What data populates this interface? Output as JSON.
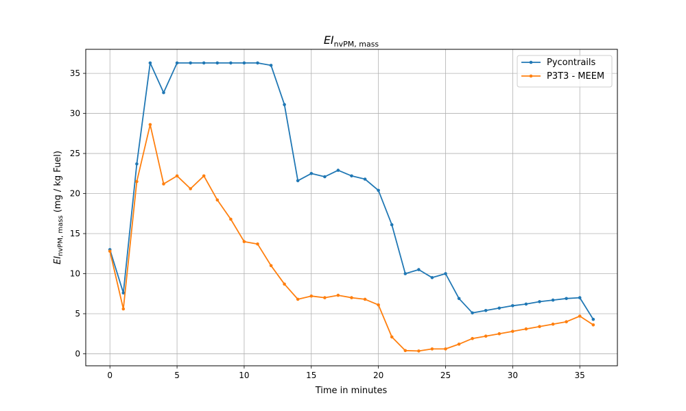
{
  "chart_data": {
    "type": "line",
    "title_main": "EI",
    "title_sub": "nvPM, mass",
    "xlabel": "Time in minutes",
    "ylabel_main": "EI",
    "ylabel_sub": "nvPM, mass",
    "ylabel_units": " (mg / kg Fuel)",
    "xlim": [
      -1.8,
      37.8
    ],
    "ylim": [
      -1.5,
      38.0
    ],
    "xticks": [
      0,
      5,
      10,
      15,
      20,
      25,
      30,
      35
    ],
    "yticks": [
      0,
      5,
      10,
      15,
      20,
      25,
      30,
      35
    ],
    "grid": true,
    "legend_position": "top-right",
    "x": [
      0,
      1,
      2,
      3,
      4,
      5,
      6,
      7,
      8,
      9,
      10,
      11,
      12,
      13,
      14,
      15,
      16,
      17,
      18,
      19,
      20,
      21,
      22,
      23,
      24,
      25,
      26,
      27,
      28,
      29,
      30,
      31,
      32,
      33,
      34,
      35,
      36
    ],
    "series": [
      {
        "name": "Pycontrails",
        "color": "#1f77b4",
        "values": [
          13.0,
          7.6,
          23.7,
          36.3,
          32.6,
          36.3,
          36.3,
          36.3,
          36.3,
          36.3,
          36.3,
          36.3,
          36.0,
          31.1,
          21.6,
          22.5,
          22.1,
          22.9,
          22.2,
          21.8,
          20.4,
          16.1,
          10.0,
          10.5,
          9.5,
          10.0,
          6.9,
          5.1,
          5.4,
          5.7,
          6.0,
          6.2,
          6.5,
          6.7,
          6.9,
          7.0,
          4.3
        ]
      },
      {
        "name": "P3T3 - MEEM",
        "color": "#ff7f0e",
        "values": [
          12.8,
          5.6,
          21.5,
          28.6,
          21.2,
          22.2,
          20.6,
          22.2,
          19.2,
          16.8,
          14.0,
          13.7,
          11.0,
          8.7,
          6.8,
          7.2,
          7.0,
          7.3,
          7.0,
          6.8,
          6.1,
          2.1,
          0.4,
          0.35,
          0.6,
          0.6,
          1.2,
          1.9,
          2.2,
          2.5,
          2.8,
          3.1,
          3.4,
          3.7,
          4.0,
          4.7,
          3.6
        ]
      }
    ]
  }
}
